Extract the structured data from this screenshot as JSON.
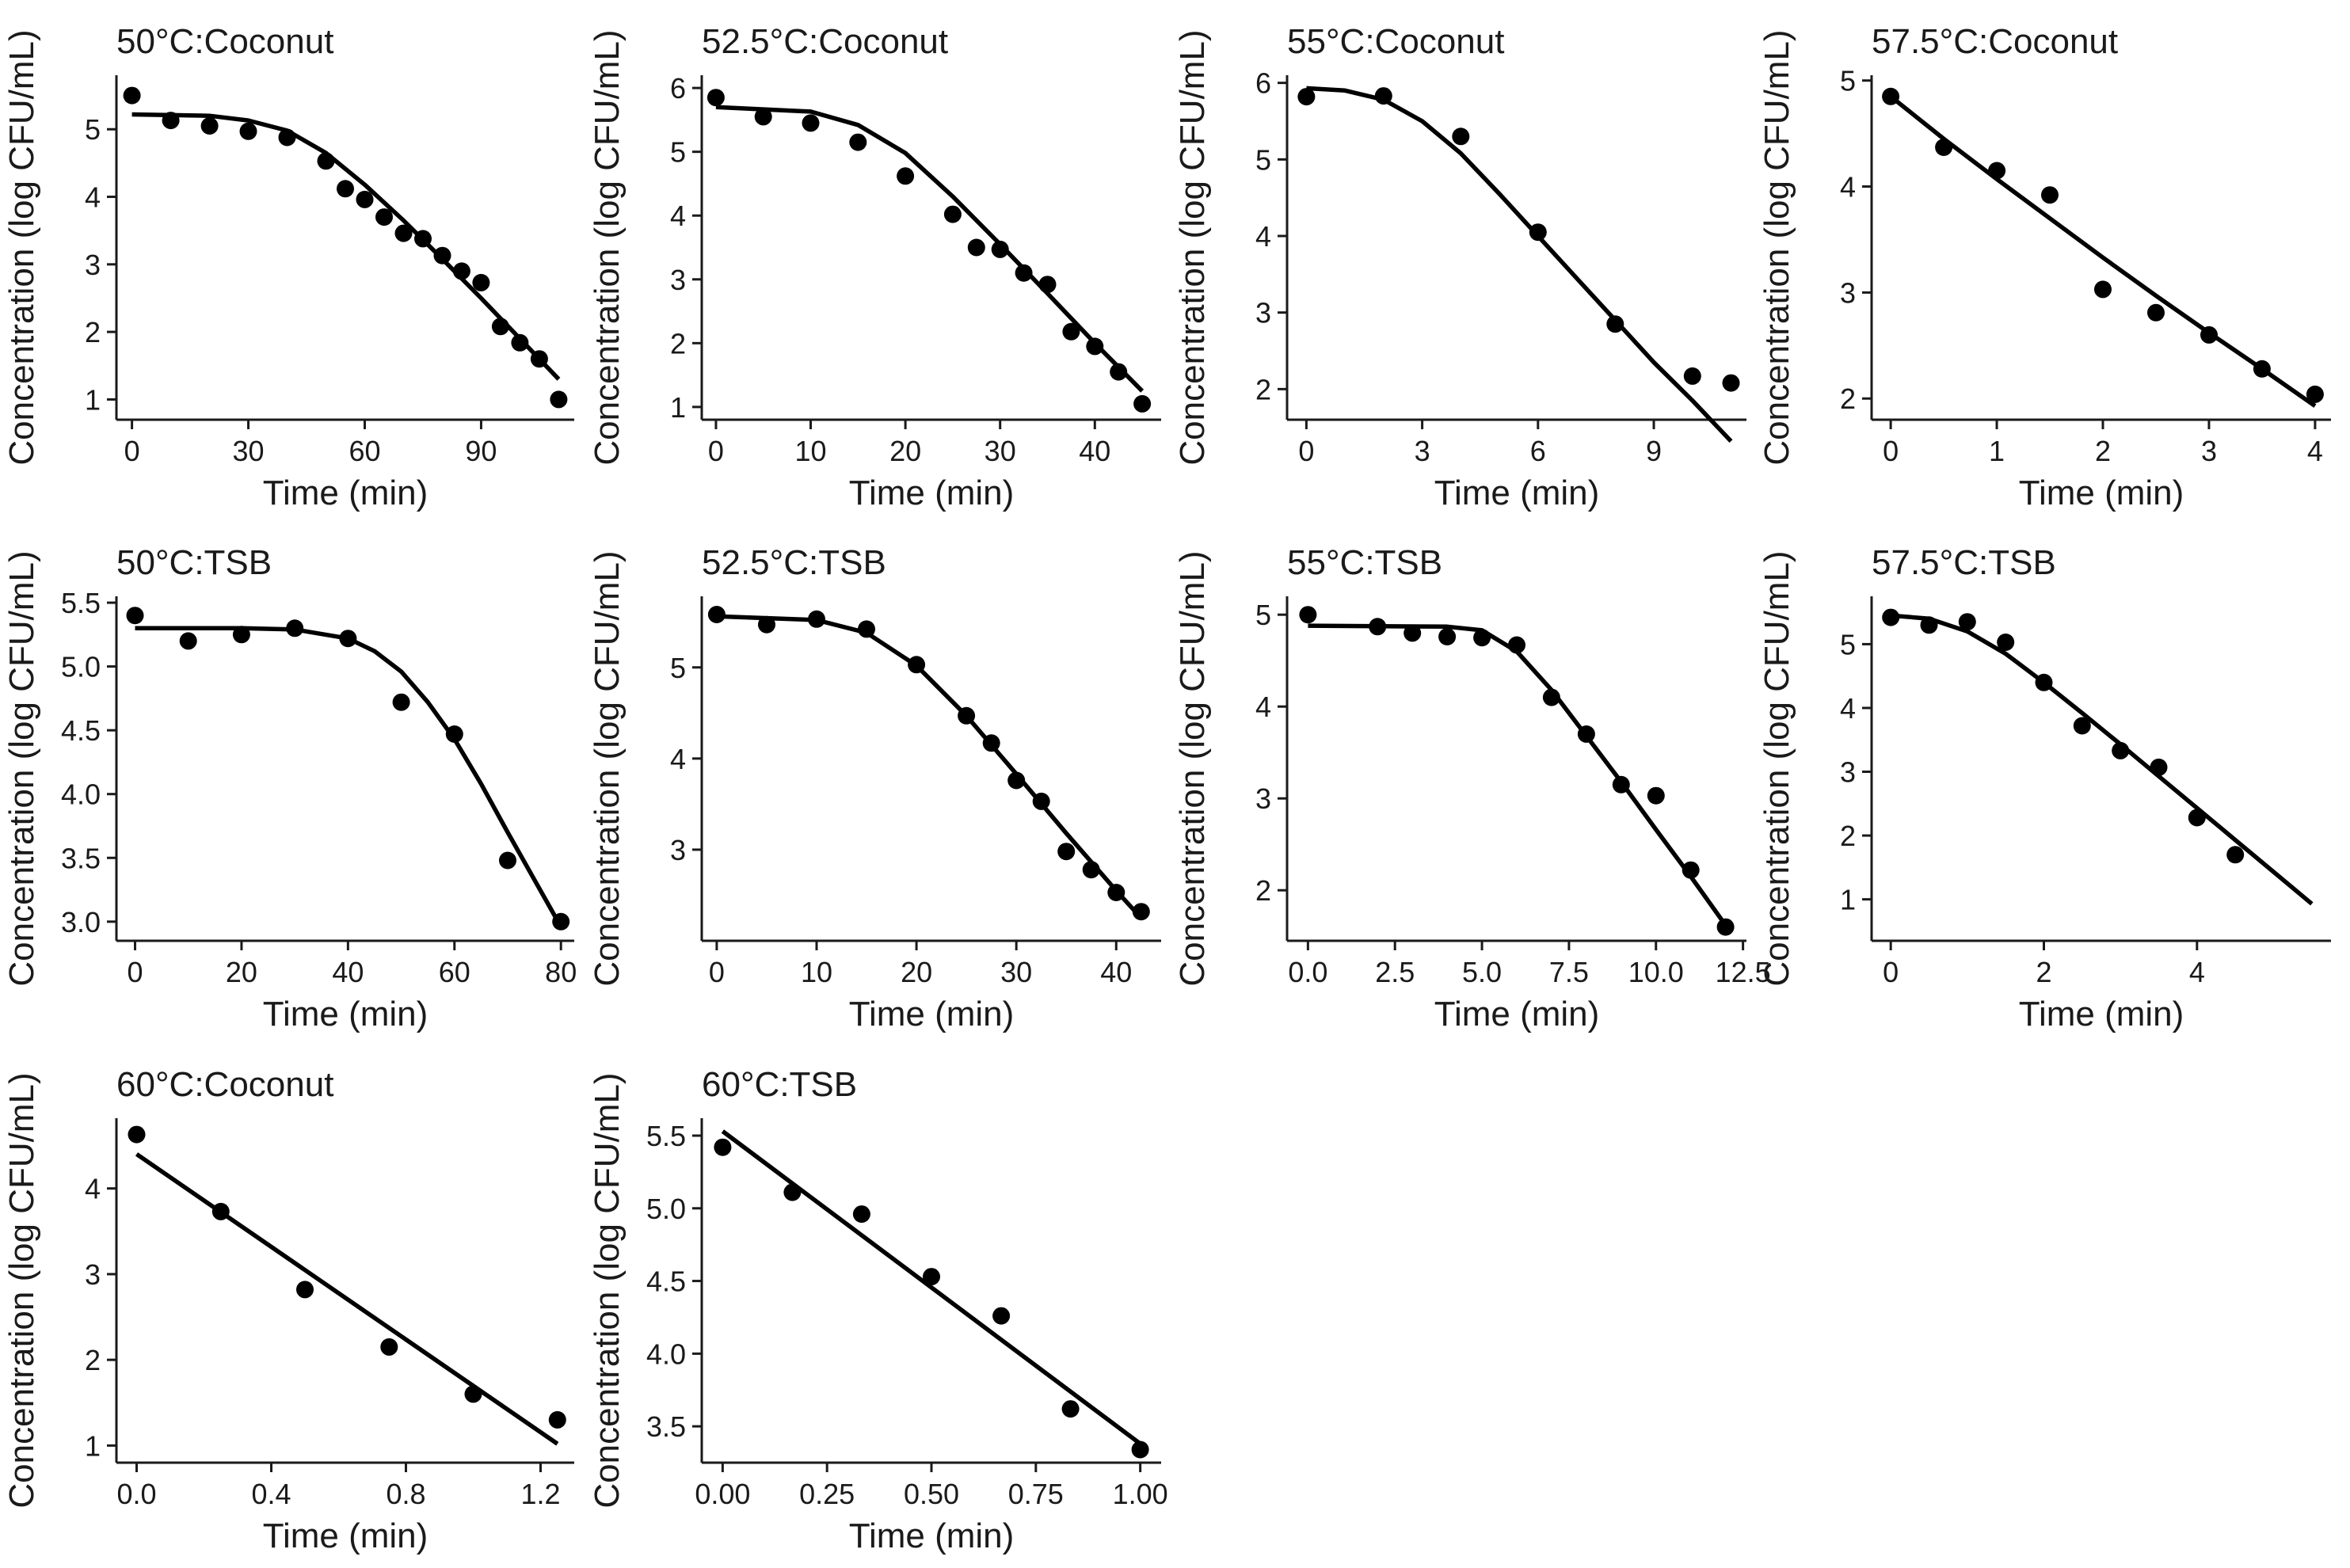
{
  "chart_data": [
    {
      "type": "scatter",
      "title": "50°C:Coconut",
      "xlabel": "Time (min)",
      "ylabel": "Concentration (log CFU/mL)",
      "xlim": [
        -4,
        114
      ],
      "ylim": [
        0.7,
        5.8
      ],
      "xticks": [
        0,
        30,
        60,
        90
      ],
      "xtick_labels": [
        "0",
        "30",
        "60",
        "90"
      ],
      "yticks": [
        1,
        2,
        3,
        4,
        5
      ],
      "ytick_labels": [
        "1",
        "2",
        "3",
        "4",
        "5"
      ],
      "points": {
        "x": [
          0,
          10,
          20,
          30,
          40,
          50,
          55,
          60,
          65,
          70,
          75,
          80,
          85,
          90,
          95,
          100,
          105,
          110
        ],
        "y": [
          5.5,
          5.13,
          5.05,
          4.97,
          4.88,
          4.53,
          4.12,
          3.96,
          3.7,
          3.46,
          3.38,
          3.13,
          2.9,
          2.73,
          2.08,
          1.84,
          1.6,
          1.0
        ]
      },
      "fit": {
        "x": [
          0,
          20,
          30,
          40,
          50,
          60,
          70,
          80,
          90,
          100,
          110
        ],
        "y": [
          5.22,
          5.2,
          5.13,
          4.98,
          4.65,
          4.18,
          3.65,
          3.08,
          2.5,
          1.9,
          1.3
        ]
      }
    },
    {
      "type": "scatter",
      "title": "52.5°C:Coconut",
      "xlabel": "Time (min)",
      "ylabel": "Concentration (log CFU/mL)",
      "xlim": [
        -1.5,
        47
      ],
      "ylim": [
        0.8,
        6.2
      ],
      "xticks": [
        0,
        10,
        20,
        30,
        40
      ],
      "xtick_labels": [
        "0",
        "10",
        "20",
        "30",
        "40"
      ],
      "yticks": [
        1,
        2,
        3,
        4,
        5,
        6
      ],
      "ytick_labels": [
        "1",
        "2",
        "3",
        "4",
        "5",
        "6"
      ],
      "points": {
        "x": [
          0,
          5,
          10,
          15,
          20,
          25,
          27.5,
          30,
          32.5,
          35,
          37.5,
          40,
          42.5,
          45
        ],
        "y": [
          5.85,
          5.55,
          5.45,
          5.15,
          4.62,
          4.02,
          3.5,
          3.47,
          3.1,
          2.92,
          2.18,
          1.95,
          1.55,
          1.05
        ]
      },
      "fit": {
        "x": [
          0,
          10,
          15,
          20,
          25,
          30,
          35,
          40,
          45
        ],
        "y": [
          5.7,
          5.63,
          5.42,
          4.98,
          4.3,
          3.55,
          2.78,
          2.0,
          1.25
        ]
      }
    },
    {
      "type": "scatter",
      "title": "55°C:Coconut",
      "xlabel": "Time (min)",
      "ylabel": "Concentration (log CFU/mL)",
      "xlim": [
        -0.5,
        11.4
      ],
      "ylim": [
        1.6,
        6.1
      ],
      "xticks": [
        0,
        3,
        6,
        9
      ],
      "xtick_labels": [
        "0",
        "3",
        "6",
        "9"
      ],
      "yticks": [
        2,
        3,
        4,
        5,
        6
      ],
      "ytick_labels": [
        "2",
        "3",
        "4",
        "5",
        "6"
      ],
      "points": {
        "x": [
          0,
          2,
          4,
          6,
          8,
          10,
          11
        ],
        "y": [
          5.82,
          5.83,
          5.3,
          4.05,
          2.85,
          2.17,
          2.08
        ]
      },
      "fit": {
        "x": [
          0,
          1,
          2,
          3,
          4,
          5,
          6,
          7,
          8,
          9,
          10,
          11
        ],
        "y": [
          5.93,
          5.9,
          5.78,
          5.5,
          5.08,
          4.55,
          4.0,
          3.45,
          2.9,
          2.35,
          1.85,
          1.32
        ]
      }
    },
    {
      "type": "scatter",
      "title": "57.5°C:Coconut",
      "xlabel": "Time (min)",
      "ylabel": "Concentration (log CFU/mL)",
      "xlim": [
        -0.18,
        4.15
      ],
      "ylim": [
        1.8,
        5.05
      ],
      "xticks": [
        0,
        1,
        2,
        3,
        4
      ],
      "xtick_labels": [
        "0",
        "1",
        "2",
        "3",
        "4"
      ],
      "yticks": [
        2,
        3,
        4,
        5
      ],
      "ytick_labels": [
        "2",
        "3",
        "4",
        "5"
      ],
      "points": {
        "x": [
          0,
          0.5,
          1,
          1.5,
          2,
          2.5,
          3,
          3.5,
          4
        ],
        "y": [
          4.85,
          4.37,
          4.15,
          3.92,
          3.03,
          2.81,
          2.6,
          2.28,
          2.04
        ]
      },
      "fit": {
        "x": [
          0,
          0.5,
          1,
          1.5,
          2,
          2.5,
          3,
          3.5,
          4
        ],
        "y": [
          4.85,
          4.45,
          4.07,
          3.7,
          3.33,
          2.97,
          2.62,
          2.28,
          1.93
        ]
      }
    },
    {
      "type": "scatter",
      "title": "50°C:TSB",
      "xlabel": "Time (min)",
      "ylabel": "Concentration (log CFU/mL)",
      "xlim": [
        -3.5,
        82.5
      ],
      "ylim": [
        2.85,
        5.55
      ],
      "xticks": [
        0,
        20,
        40,
        60,
        80
      ],
      "xtick_labels": [
        "0",
        "20",
        "40",
        "60",
        "80"
      ],
      "yticks": [
        3.0,
        3.5,
        4.0,
        4.5,
        5.0,
        5.5
      ],
      "ytick_labels": [
        "3.0",
        "3.5",
        "4.0",
        "4.5",
        "5.0",
        "5.5"
      ],
      "points": {
        "x": [
          0,
          10,
          20,
          30,
          40,
          50,
          60,
          70,
          80
        ],
        "y": [
          5.4,
          5.2,
          5.25,
          5.3,
          5.22,
          4.72,
          4.47,
          3.48,
          3.0
        ]
      },
      "fit": {
        "x": [
          0,
          20,
          30,
          40,
          45,
          50,
          55,
          60,
          65,
          70,
          75,
          80
        ],
        "y": [
          5.3,
          5.3,
          5.29,
          5.22,
          5.12,
          4.96,
          4.72,
          4.43,
          4.08,
          3.7,
          3.33,
          2.96
        ]
      }
    },
    {
      "type": "scatter",
      "title": "52.5°C:TSB",
      "xlabel": "Time (min)",
      "ylabel": "Concentration (log CFU/mL)",
      "xlim": [
        -1.5,
        44.5
      ],
      "ylim": [
        2.0,
        5.78
      ],
      "xticks": [
        0,
        10,
        20,
        30,
        40
      ],
      "xtick_labels": [
        "0",
        "10",
        "20",
        "30",
        "40"
      ],
      "yticks": [
        3,
        4,
        5
      ],
      "ytick_labels": [
        "3",
        "4",
        "5"
      ],
      "points": {
        "x": [
          0,
          5,
          10,
          15,
          20,
          25,
          27.5,
          30,
          32.5,
          35,
          37.5,
          40,
          42.5
        ],
        "y": [
          5.58,
          5.47,
          5.53,
          5.42,
          5.03,
          4.47,
          4.17,
          3.76,
          3.53,
          2.98,
          2.78,
          2.53,
          2.32
        ]
      },
      "fit": {
        "x": [
          0,
          10,
          15,
          20,
          25,
          30,
          35,
          40,
          42.5
        ],
        "y": [
          5.56,
          5.52,
          5.38,
          5.02,
          4.47,
          3.83,
          3.18,
          2.55,
          2.25
        ]
      }
    },
    {
      "type": "scatter",
      "title": "55°C:TSB",
      "xlabel": "Time (min)",
      "ylabel": "Concentration (log CFU/mL)",
      "xlim": [
        -0.6,
        12.6
      ],
      "ylim": [
        1.45,
        5.2
      ],
      "xticks": [
        0,
        2.5,
        5,
        7.5,
        10,
        12.5
      ],
      "xtick_labels": [
        "0.0",
        "2.5",
        "5.0",
        "7.5",
        "10.0",
        "12.5"
      ],
      "yticks": [
        2,
        3,
        4,
        5
      ],
      "ytick_labels": [
        "2",
        "3",
        "4",
        "5"
      ],
      "points": {
        "x": [
          0,
          2,
          3,
          4,
          5,
          6,
          7,
          8,
          9,
          10,
          11,
          12
        ],
        "y": [
          5.0,
          4.87,
          4.8,
          4.76,
          4.75,
          4.67,
          4.1,
          3.7,
          3.15,
          3.03,
          2.22,
          1.6
        ]
      },
      "fit": {
        "x": [
          0,
          4,
          5,
          6,
          7,
          8,
          9,
          10,
          11,
          12
        ],
        "y": [
          4.88,
          4.87,
          4.83,
          4.6,
          4.18,
          3.68,
          3.18,
          2.66,
          2.15,
          1.62
        ]
      }
    },
    {
      "type": "scatter",
      "title": "57.5°C:TSB",
      "xlabel": "Time (min)",
      "ylabel": "Concentration (log CFU/mL)",
      "xlim": [
        -0.25,
        5.75
      ],
      "ylim": [
        0.35,
        5.75
      ],
      "xticks": [
        0,
        2,
        4
      ],
      "xtick_labels": [
        "0",
        "2",
        "4"
      ],
      "yticks": [
        1,
        2,
        3,
        4,
        5
      ],
      "ytick_labels": [
        "1",
        "2",
        "3",
        "4",
        "5"
      ],
      "points": {
        "x": [
          0,
          0.5,
          1,
          1.5,
          2,
          2.5,
          3,
          3.5,
          4,
          4.5
        ],
        "y": [
          5.42,
          5.3,
          5.35,
          5.03,
          4.4,
          3.72,
          3.33,
          3.07,
          2.28,
          1.7
        ]
      },
      "fit": {
        "x": [
          0,
          0.5,
          1,
          1.5,
          2,
          2.5,
          3,
          3.5,
          4,
          4.5,
          5,
          5.5
        ],
        "y": [
          5.45,
          5.4,
          5.2,
          4.85,
          4.4,
          3.92,
          3.43,
          2.93,
          2.43,
          1.93,
          1.43,
          0.93
        ]
      }
    },
    {
      "type": "scatter",
      "title": "60°C:Coconut",
      "xlabel": "Time (min)",
      "ylabel": "Concentration (log CFU/mL)",
      "xlim": [
        -0.06,
        1.3
      ],
      "ylim": [
        0.8,
        4.82
      ],
      "xticks": [
        0,
        0.4,
        0.8,
        1.2
      ],
      "xtick_labels": [
        "0.0",
        "0.4",
        "0.8",
        "1.2"
      ],
      "yticks": [
        1,
        2,
        3,
        4
      ],
      "ytick_labels": [
        "1",
        "2",
        "3",
        "4"
      ],
      "points": {
        "x": [
          0,
          0.25,
          0.5,
          0.75,
          1.0,
          1.25
        ],
        "y": [
          4.63,
          3.73,
          2.82,
          2.15,
          1.6,
          1.3
        ]
      },
      "fit": {
        "x": [
          0,
          1.25
        ],
        "y": [
          4.4,
          1.02
        ]
      }
    },
    {
      "type": "scatter",
      "title": "60°C:TSB",
      "xlabel": "Time (min)",
      "ylabel": "Concentration (log CFU/mL)",
      "xlim": [
        -0.05,
        1.05
      ],
      "ylim": [
        3.25,
        5.62
      ],
      "xticks": [
        0,
        0.25,
        0.5,
        0.75,
        1.0
      ],
      "xtick_labels": [
        "0.00",
        "0.25",
        "0.50",
        "0.75",
        "1.00"
      ],
      "yticks": [
        3.5,
        4.0,
        4.5,
        5.0,
        5.5
      ],
      "ytick_labels": [
        "3.5",
        "4.0",
        "4.5",
        "5.0",
        "5.5"
      ],
      "points": {
        "x": [
          0,
          0.167,
          0.333,
          0.5,
          0.667,
          0.833,
          1.0
        ],
        "y": [
          5.42,
          5.11,
          4.96,
          4.53,
          4.26,
          3.62,
          3.34
        ]
      },
      "fit": {
        "x": [
          0,
          1.0
        ],
        "y": [
          5.53,
          3.38
        ]
      }
    }
  ]
}
